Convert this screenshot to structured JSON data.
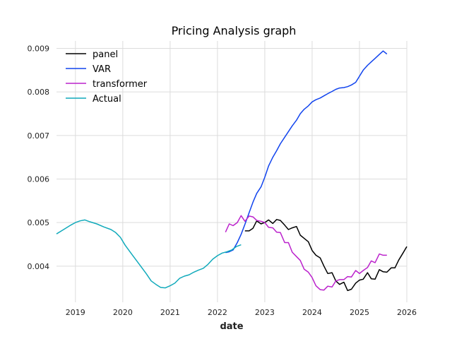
{
  "chart_data": {
    "type": "line",
    "title": "Pricing Analysis graph",
    "xlabel": "date",
    "ylabel": "",
    "xlim": [
      2018.6,
      2026.0
    ],
    "ylim": [
      0.00317,
      0.00917
    ],
    "grid": true,
    "legend_position": "top-left",
    "x_ticks": [
      2019,
      2020,
      2021,
      2022,
      2023,
      2024,
      2025,
      2026
    ],
    "x_tick_labels": [
      "2019",
      "2020",
      "2021",
      "2022",
      "2023",
      "2024",
      "2025",
      "2026"
    ],
    "y_ticks": [
      0.004,
      0.005,
      0.006,
      0.007,
      0.008,
      0.009
    ],
    "y_tick_labels": [
      "0.004",
      "0.005",
      "0.006",
      "0.007",
      "0.008",
      "0.009"
    ],
    "series": [
      {
        "name": "panel",
        "color": "#000000",
        "x": [
          2022.58,
          2022.67,
          2022.75,
          2022.83,
          2022.92,
          2023.0,
          2023.08,
          2023.17,
          2023.25,
          2023.33,
          2023.42,
          2023.5,
          2023.58,
          2023.67,
          2023.75,
          2023.83,
          2023.92,
          2024.0,
          2024.08,
          2024.17,
          2024.25,
          2024.33,
          2024.42,
          2024.5,
          2024.58,
          2024.67,
          2024.75,
          2024.83,
          2024.92,
          2025.0,
          2025.08,
          2025.17,
          2025.25,
          2025.33,
          2025.42,
          2025.5,
          2025.58,
          2025.67,
          2025.75,
          2025.83,
          2025.92,
          2026.0
        ],
        "values": [
          0.00481,
          0.00481,
          0.00487,
          0.00504,
          0.00497,
          0.005,
          0.00506,
          0.00498,
          0.00507,
          0.00505,
          0.00494,
          0.00484,
          0.00488,
          0.00491,
          0.00471,
          0.00464,
          0.00456,
          0.00436,
          0.00425,
          0.00419,
          0.004,
          0.00383,
          0.00385,
          0.00366,
          0.00358,
          0.00363,
          0.00344,
          0.00347,
          0.00361,
          0.00368,
          0.0037,
          0.00385,
          0.00371,
          0.0037,
          0.00392,
          0.00387,
          0.00386,
          0.00396,
          0.00396,
          0.00414,
          0.0043,
          0.00445
        ]
      },
      {
        "name": "VAR",
        "color": "#1144ee",
        "x": [
          2022.17,
          2022.25,
          2022.33,
          2022.42,
          2022.5,
          2022.58,
          2022.67,
          2022.75,
          2022.83,
          2022.92,
          2023.0,
          2023.08,
          2023.17,
          2023.25,
          2023.33,
          2023.42,
          2023.5,
          2023.58,
          2023.67,
          2023.75,
          2023.83,
          2023.92,
          2024.0,
          2024.08,
          2024.17,
          2024.25,
          2024.33,
          2024.42,
          2024.5,
          2024.58,
          2024.67,
          2024.75,
          2024.83,
          2024.92,
          2025.0,
          2025.08,
          2025.17,
          2025.25,
          2025.33,
          2025.42,
          2025.5,
          2025.58
        ],
        "values": [
          0.00431,
          0.00433,
          0.00437,
          0.00454,
          0.00473,
          0.00496,
          0.00523,
          0.00547,
          0.00567,
          0.00582,
          0.00604,
          0.0063,
          0.0065,
          0.00665,
          0.00681,
          0.00696,
          0.00709,
          0.00722,
          0.00735,
          0.0075,
          0.0076,
          0.00768,
          0.00777,
          0.00782,
          0.00786,
          0.00791,
          0.00796,
          0.00801,
          0.00806,
          0.00809,
          0.0081,
          0.00812,
          0.00816,
          0.00822,
          0.00836,
          0.0085,
          0.00861,
          0.00869,
          0.00877,
          0.00886,
          0.00894,
          0.00887
        ]
      },
      {
        "name": "transformer",
        "color": "#bb22cc",
        "x": [
          2022.17,
          2022.25,
          2022.33,
          2022.42,
          2022.5,
          2022.58,
          2022.67,
          2022.75,
          2022.83,
          2022.92,
          2023.0,
          2023.08,
          2023.17,
          2023.25,
          2023.33,
          2023.42,
          2023.5,
          2023.58,
          2023.67,
          2023.75,
          2023.83,
          2023.92,
          2024.0,
          2024.08,
          2024.17,
          2024.25,
          2024.33,
          2024.42,
          2024.5,
          2024.58,
          2024.67,
          2024.75,
          2024.83,
          2024.92,
          2025.0,
          2025.08,
          2025.17,
          2025.25,
          2025.33,
          2025.42,
          2025.5,
          2025.58
        ],
        "values": [
          0.00478,
          0.00497,
          0.00493,
          0.005,
          0.00516,
          0.00503,
          0.00515,
          0.00513,
          0.00505,
          0.00503,
          0.005,
          0.00489,
          0.00488,
          0.00478,
          0.00477,
          0.00454,
          0.00454,
          0.00432,
          0.00422,
          0.00413,
          0.00393,
          0.00386,
          0.00374,
          0.00355,
          0.00346,
          0.00345,
          0.00354,
          0.00352,
          0.00366,
          0.00369,
          0.00369,
          0.00376,
          0.00375,
          0.0039,
          0.00383,
          0.0039,
          0.00397,
          0.00412,
          0.00408,
          0.00428,
          0.00425,
          0.00425
        ]
      },
      {
        "name": "Actual",
        "color": "#11aabb",
        "x": [
          2018.6,
          2018.75,
          2018.9,
          2019.0,
          2019.1,
          2019.2,
          2019.3,
          2019.45,
          2019.6,
          2019.75,
          2019.85,
          2019.95,
          2020.05,
          2020.2,
          2020.35,
          2020.5,
          2020.6,
          2020.7,
          2020.8,
          2020.9,
          2021.0,
          2021.1,
          2021.2,
          2021.3,
          2021.4,
          2021.5,
          2021.6,
          2021.7,
          2021.8,
          2021.9,
          2022.0,
          2022.1,
          2022.2,
          2022.3,
          2022.4,
          2022.5
        ],
        "values": [
          0.00474,
          0.00484,
          0.00494,
          0.005,
          0.00504,
          0.00506,
          0.00502,
          0.00497,
          0.0049,
          0.00484,
          0.00477,
          0.00466,
          0.00448,
          0.00426,
          0.00404,
          0.00382,
          0.00366,
          0.00358,
          0.00351,
          0.0035,
          0.00355,
          0.00361,
          0.00372,
          0.00377,
          0.0038,
          0.00386,
          0.00391,
          0.00395,
          0.00404,
          0.00416,
          0.00424,
          0.0043,
          0.00433,
          0.00437,
          0.00445,
          0.00449
        ]
      }
    ]
  }
}
